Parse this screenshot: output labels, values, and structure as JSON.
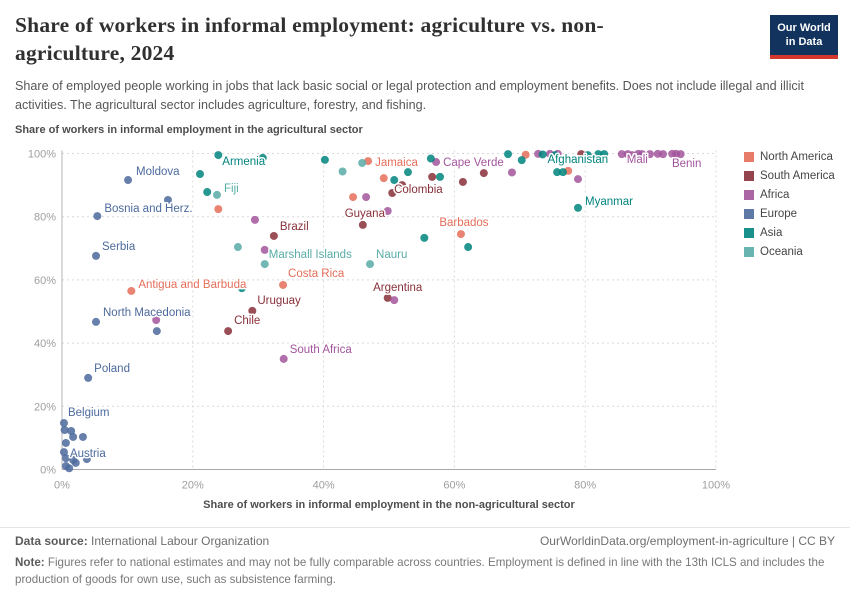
{
  "header": {
    "title": "Share of workers in informal employment: agriculture vs. non-agriculture, 2024",
    "subtitle": "Share of employed people working in jobs that lack basic social or legal protection and employment benefits. Does not include illegal and illicit activities. The agricultural sector includes agriculture, forestry, and fishing.",
    "logo": {
      "line1": "Our World",
      "line2": "in Data"
    }
  },
  "chart_data": {
    "type": "scatter",
    "title": "Share of workers in informal employment: agriculture vs. non-agriculture, 2024",
    "xlabel": "Share of workers in informal employment in the non-agricultural sector",
    "ylabel": "Share of workers in informal employment in the agricultural sector",
    "xlim": [
      0,
      100
    ],
    "ylim": [
      0,
      100
    ],
    "grid": true,
    "xticks": [
      {
        "v": 0,
        "label": "0%"
      },
      {
        "v": 20,
        "label": "20%"
      },
      {
        "v": 40,
        "label": "40%"
      },
      {
        "v": 60,
        "label": "60%"
      },
      {
        "v": 80,
        "label": "80%"
      },
      {
        "v": 100,
        "label": "100%"
      }
    ],
    "yticks": [
      {
        "v": 0,
        "label": "0%"
      },
      {
        "v": 20,
        "label": "20%"
      },
      {
        "v": 40,
        "label": "40%"
      },
      {
        "v": 60,
        "label": "60%"
      },
      {
        "v": 80,
        "label": "80%"
      },
      {
        "v": 100,
        "label": "100%"
      }
    ],
    "legend": {
      "position": "right",
      "entries": [
        {
          "label": "North America",
          "color": "#E56E5A"
        },
        {
          "label": "South America",
          "color": "#883039"
        },
        {
          "label": "Africa",
          "color": "#A2559C"
        },
        {
          "label": "Europe",
          "color": "#4C6A9C"
        },
        {
          "label": "Asia",
          "color": "#00847E"
        },
        {
          "label": "Oceania",
          "color": "#58ACA7"
        }
      ]
    },
    "series": [
      {
        "name": "North America",
        "color": "#E56E5A",
        "points": [
          {
            "x": 46.8,
            "y": 97.6,
            "label": "Jamaica",
            "dx": 7,
            "dy": 5,
            "anchor": "start"
          },
          {
            "x": 10.6,
            "y": 56.5,
            "label": "Antigua and Barbuda",
            "dx": 7,
            "dy": -3,
            "anchor": "start"
          },
          {
            "x": 33.8,
            "y": 58.4,
            "label": "Costa Rica",
            "dx": 5,
            "dy": -8,
            "anchor": "start"
          },
          {
            "x": 61.0,
            "y": 74.5,
            "label": "Barbados",
            "dx": 3,
            "dy": -8,
            "anchor": "middle"
          },
          {
            "x": 23.9,
            "y": 82.4
          },
          {
            "x": 49.2,
            "y": 92.2
          },
          {
            "x": 70.9,
            "y": 99.6
          },
          {
            "x": 77.4,
            "y": 94.5
          },
          {
            "x": 44.5,
            "y": 86.2
          }
        ]
      },
      {
        "name": "South America",
        "color": "#883039",
        "points": [
          {
            "x": 32.4,
            "y": 73.9,
            "label": "Brazil",
            "dx": 6,
            "dy": -6,
            "anchor": "start"
          },
          {
            "x": 46.0,
            "y": 77.4,
            "label": "Guyana",
            "dx": 2,
            "dy": -8,
            "anchor": "middle"
          },
          {
            "x": 52.0,
            "y": 90.0,
            "label": "Colombia",
            "dx": -8,
            "dy": 8,
            "anchor": "start"
          },
          {
            "x": 49.8,
            "y": 54.3,
            "label": "Argentina",
            "dx": 10,
            "dy": -7,
            "anchor": "middle"
          },
          {
            "x": 29.1,
            "y": 50.2,
            "label": "Uruguay",
            "dx": 5,
            "dy": -7,
            "anchor": "start"
          },
          {
            "x": 25.4,
            "y": 43.8,
            "label": "Chile",
            "dx": 6,
            "dy": -7,
            "anchor": "start"
          },
          {
            "x": 50.5,
            "y": 87.5
          },
          {
            "x": 56.6,
            "y": 92.6
          },
          {
            "x": 61.3,
            "y": 91.0
          },
          {
            "x": 64.5,
            "y": 93.8
          },
          {
            "x": 79.4,
            "y": 99.8
          }
        ]
      },
      {
        "name": "Africa",
        "color": "#A2559C",
        "points": [
          {
            "x": 57.2,
            "y": 97.3,
            "label": "Cape Verde",
            "dx": 7,
            "dy": 4,
            "anchor": "start"
          },
          {
            "x": 87.2,
            "y": 99.5,
            "label": "Mali",
            "dx": 5,
            "dy": 8,
            "anchor": "middle"
          },
          {
            "x": 94.6,
            "y": 99.8,
            "label": "Benin",
            "dx": 0,
            "dy": 13,
            "anchor": "middle"
          },
          {
            "x": 33.9,
            "y": 35.0,
            "label": "South Africa",
            "dx": 6,
            "dy": -6,
            "anchor": "start"
          },
          {
            "x": 29.5,
            "y": 79.0
          },
          {
            "x": 31.0,
            "y": 69.5
          },
          {
            "x": 50.8,
            "y": 53.6
          },
          {
            "x": 68.8,
            "y": 94.0
          },
          {
            "x": 72.8,
            "y": 99.9
          },
          {
            "x": 74.6,
            "y": 99.9
          },
          {
            "x": 75.8,
            "y": 99.9
          },
          {
            "x": 78.9,
            "y": 91.9
          },
          {
            "x": 46.5,
            "y": 86.2
          },
          {
            "x": 49.8,
            "y": 81.8
          },
          {
            "x": 85.6,
            "y": 99.8
          },
          {
            "x": 86.5,
            "y": 99.8
          },
          {
            "x": 88.1,
            "y": 99.9
          },
          {
            "x": 88.7,
            "y": 99.8
          },
          {
            "x": 89.9,
            "y": 99.8
          },
          {
            "x": 91.1,
            "y": 99.9
          },
          {
            "x": 91.9,
            "y": 99.8
          },
          {
            "x": 93.3,
            "y": 99.9
          },
          {
            "x": 93.9,
            "y": 99.9
          },
          {
            "x": 14.4,
            "y": 47.3
          }
        ]
      },
      {
        "name": "Europe",
        "color": "#4C6A9C",
        "points": [
          {
            "x": 10.1,
            "y": 91.6,
            "label": "Moldova",
            "dx": 8,
            "dy": -5,
            "anchor": "start"
          },
          {
            "x": 5.4,
            "y": 80.2,
            "label": "Bosnia and Herz.",
            "dx": 7,
            "dy": -4,
            "anchor": "start"
          },
          {
            "x": 5.2,
            "y": 67.6,
            "label": "Serbia",
            "dx": 6,
            "dy": -6,
            "anchor": "start"
          },
          {
            "x": 5.2,
            "y": 46.7,
            "label": "North Macedonia",
            "dx": 7,
            "dy": -6,
            "anchor": "start"
          },
          {
            "x": 4.0,
            "y": 29.0,
            "label": "Poland",
            "dx": 6,
            "dy": -6,
            "anchor": "start"
          },
          {
            "x": 0.3,
            "y": 14.7,
            "label": "Belgium",
            "dx": 4,
            "dy": -7,
            "anchor": "start"
          },
          {
            "x": 0.3,
            "y": 5.5,
            "label": "Austria",
            "dx": 6,
            "dy": 5,
            "anchor": "start"
          },
          {
            "x": 16.2,
            "y": 85.3
          },
          {
            "x": 14.5,
            "y": 43.8
          },
          {
            "x": 0.4,
            "y": 12.5
          },
          {
            "x": 1.4,
            "y": 12.2
          },
          {
            "x": 1.7,
            "y": 10.3
          },
          {
            "x": 3.2,
            "y": 10.3
          },
          {
            "x": 0.6,
            "y": 8.4
          },
          {
            "x": 0.6,
            "y": 3.6
          },
          {
            "x": 1.7,
            "y": 3.0
          },
          {
            "x": 3.8,
            "y": 3.3
          },
          {
            "x": 2.1,
            "y": 2.1
          },
          {
            "x": 0.6,
            "y": 1.1
          },
          {
            "x": 1.1,
            "y": 0.4
          }
        ]
      },
      {
        "name": "Asia",
        "color": "#00847E",
        "points": [
          {
            "x": 23.9,
            "y": 99.5,
            "label": "Armenia",
            "dx": 4,
            "dy": 10,
            "anchor": "start"
          },
          {
            "x": 80.4,
            "y": 99.5,
            "label": "Afghanistan",
            "dx": -10,
            "dy": 8,
            "anchor": "middle"
          },
          {
            "x": 78.9,
            "y": 82.8,
            "label": "Myanmar",
            "dx": 7,
            "dy": -3,
            "anchor": "start"
          },
          {
            "x": 30.7,
            "y": 98.6
          },
          {
            "x": 21.1,
            "y": 93.5
          },
          {
            "x": 22.2,
            "y": 87.8
          },
          {
            "x": 27.5,
            "y": 57.4
          },
          {
            "x": 40.2,
            "y": 98.0
          },
          {
            "x": 50.8,
            "y": 91.6
          },
          {
            "x": 56.4,
            "y": 98.4
          },
          {
            "x": 68.2,
            "y": 99.8
          },
          {
            "x": 73.5,
            "y": 99.7
          },
          {
            "x": 75.4,
            "y": 99.5
          },
          {
            "x": 82.0,
            "y": 99.8
          },
          {
            "x": 82.9,
            "y": 99.8
          },
          {
            "x": 52.9,
            "y": 94.1
          },
          {
            "x": 57.8,
            "y": 92.6
          },
          {
            "x": 70.3,
            "y": 97.9
          },
          {
            "x": 75.7,
            "y": 94.1
          },
          {
            "x": 76.6,
            "y": 94.1
          },
          {
            "x": 55.4,
            "y": 73.3
          },
          {
            "x": 62.1,
            "y": 70.4
          }
        ]
      },
      {
        "name": "Oceania",
        "color": "#58ACA7",
        "points": [
          {
            "x": 23.7,
            "y": 86.9,
            "label": "Fiji",
            "dx": 7,
            "dy": -3,
            "anchor": "start"
          },
          {
            "x": 31.0,
            "y": 65.0,
            "label": "Marshall Islands",
            "dx": 4,
            "dy": -6,
            "anchor": "start"
          },
          {
            "x": 47.1,
            "y": 65.0,
            "label": "Nauru",
            "dx": 6,
            "dy": -6,
            "anchor": "start"
          },
          {
            "x": 45.9,
            "y": 97.0
          },
          {
            "x": 42.9,
            "y": 94.3
          },
          {
            "x": 26.9,
            "y": 70.4
          }
        ]
      }
    ]
  },
  "footer": {
    "datasource_label": "Data source:",
    "datasource_value": "International Labour Organization",
    "link": "OurWorldinData.org/employment-in-agriculture",
    "separator": "|",
    "license": "CC BY",
    "note_label": "Note:",
    "note_text": "Figures refer to national estimates and may not be fully comparable across countries. Employment is defined in line with the 13th ICLS and includes the production of goods for own use, such as subsistence farming."
  }
}
